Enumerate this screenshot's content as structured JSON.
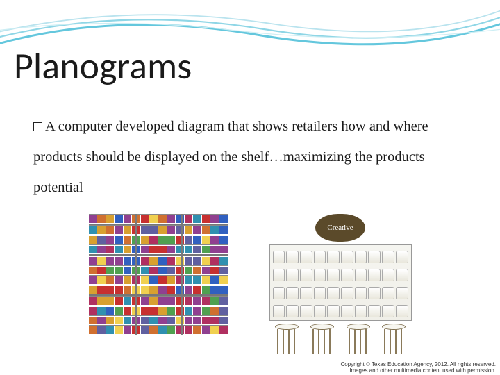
{
  "slide": {
    "title": "Planograms",
    "body_text": "A computer developed diagram that shows retailers how and where products should be displayed on the shelf…maximizing the products potential"
  },
  "decoration": {
    "wave_colors": [
      "#64c7dd",
      "#8fd6e6",
      "#b9e3ee"
    ],
    "background_color": "#ffffff"
  },
  "planogram_a": {
    "type": "shelf-planogram",
    "rows": 12,
    "items_per_row": 16,
    "pillar_positions_pct": [
      33,
      66
    ],
    "palette": [
      "#c73030",
      "#d8a030",
      "#3060c0",
      "#50a050",
      "#904090",
      "#d07030",
      "#3090b0",
      "#b03060",
      "#f0d050",
      "#6060a0"
    ]
  },
  "planogram_b": {
    "type": "display-sketch",
    "logo_text": "Creative",
    "logo_bg": "#5b4a2a",
    "shelf_rows": 4,
    "jars_per_row": 10,
    "stool_count": 4,
    "stool_color": "#8a7a5a"
  },
  "attribution": {
    "line1": "Copyright © Texas Education Agency, 2012. All rights reserved.",
    "line2": "Images and other multimedia content used with permission."
  },
  "typography": {
    "title_font": "Calibri",
    "title_size_pt": 40,
    "body_font": "Georgia",
    "body_size_pt": 15
  }
}
